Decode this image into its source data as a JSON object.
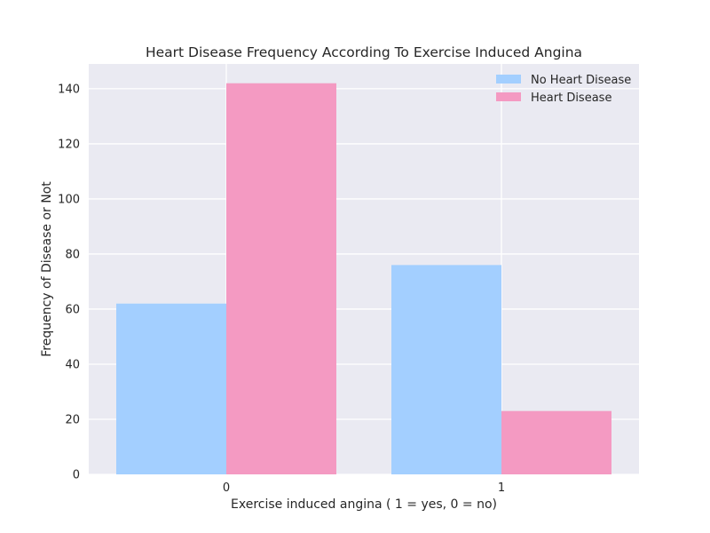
{
  "chart_data": {
    "type": "bar",
    "title": "Heart Disease Frequency According To Exercise Induced Angina",
    "xlabel": "Exercise induced angina ( 1 = yes, 0 = no)",
    "ylabel": "Frequency of Disease or Not",
    "categories": [
      "0",
      "1"
    ],
    "series": [
      {
        "name": "No Heart Disease",
        "values": [
          62,
          76
        ],
        "color": "#a3cfff"
      },
      {
        "name": "Heart Disease",
        "values": [
          142,
          23
        ],
        "color": "#f49ac2"
      }
    ],
    "yticks": [
      0,
      20,
      40,
      60,
      80,
      100,
      120,
      140
    ],
    "ylim": [
      0,
      149
    ],
    "grid": true,
    "legend_position": "top-right",
    "colors": {
      "background": "#eaeaf2",
      "grid": "#ffffff",
      "text": "#262626"
    }
  }
}
